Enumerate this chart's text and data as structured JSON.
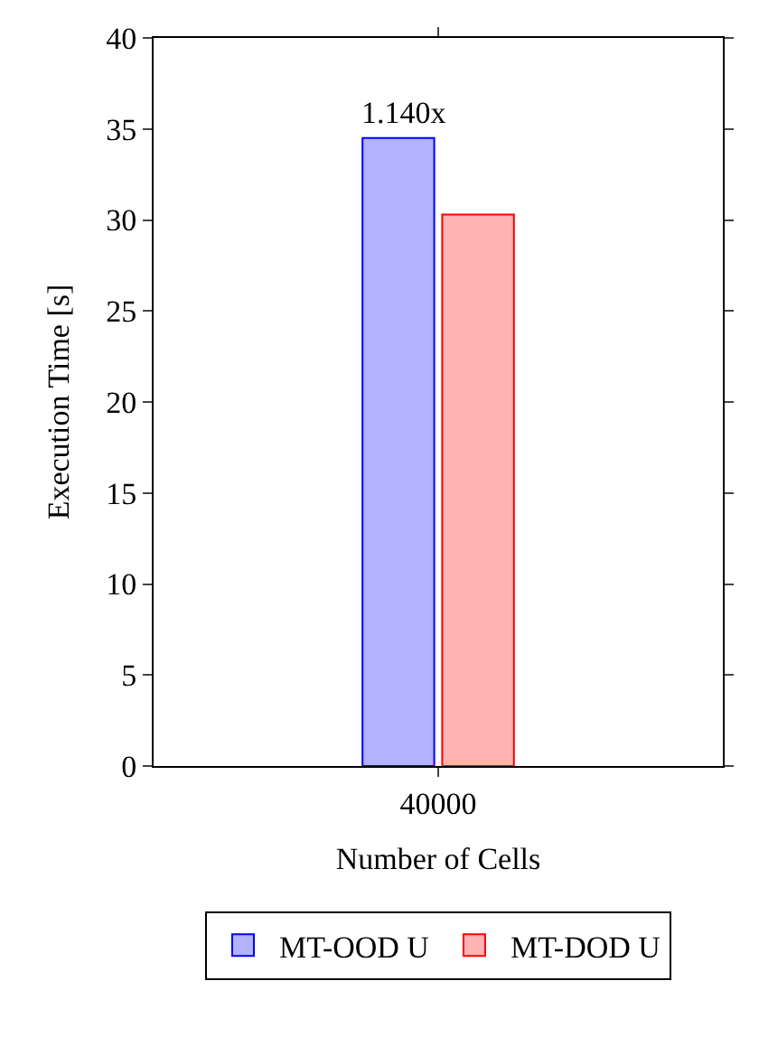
{
  "chart_data": {
    "type": "bar",
    "xlabel": "Number of Cells",
    "ylabel": "Execution Time [s]",
    "categories": [
      "40000"
    ],
    "series": [
      {
        "name": "MT-OOD U",
        "color": "#0000ff",
        "values": [
          34.5
        ]
      },
      {
        "name": "MT-DOD U",
        "color": "#ff0000",
        "values": [
          30.3
        ]
      }
    ],
    "annotations": [
      {
        "text": "1.140x",
        "x": "40000",
        "y": 34.5
      }
    ],
    "ylim": [
      0,
      40
    ],
    "yticks": [
      0,
      5,
      10,
      15,
      20,
      25,
      30,
      35,
      40
    ],
    "legend": "bottom"
  }
}
